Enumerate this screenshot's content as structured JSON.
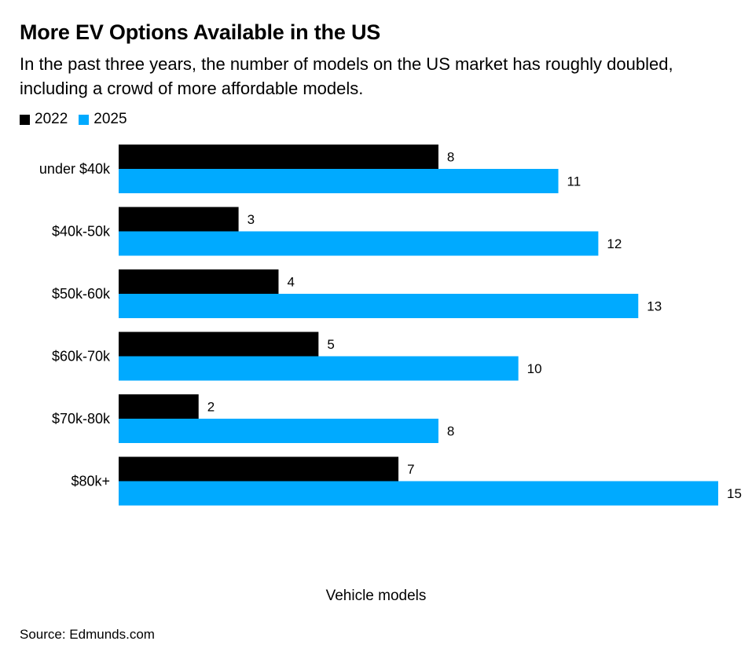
{
  "colors": {
    "series_2022": "#000000",
    "series_2025": "#00aaff"
  },
  "chart_data": {
    "type": "bar",
    "orientation": "horizontal",
    "title": "More EV Options Available in the US",
    "subtitle": "In the past three years, the number of models on the US market has roughly doubled, including a crowd of more affordable models.",
    "xlabel": "Vehicle models",
    "ylabel": "",
    "categories": [
      "under $40k",
      "$40k-50k",
      "$50k-60k",
      "$60k-70k",
      "$70k-80k",
      "$80k+"
    ],
    "series": [
      {
        "name": "2022",
        "values": [
          8,
          3,
          4,
          5,
          2,
          7
        ]
      },
      {
        "name": "2025",
        "values": [
          11,
          12,
          13,
          10,
          8,
          15
        ]
      }
    ],
    "xlim": [
      0,
      15
    ],
    "data_labels": true,
    "grid": false,
    "legend_position": "top-left"
  },
  "source": "Source: Edmunds.com"
}
